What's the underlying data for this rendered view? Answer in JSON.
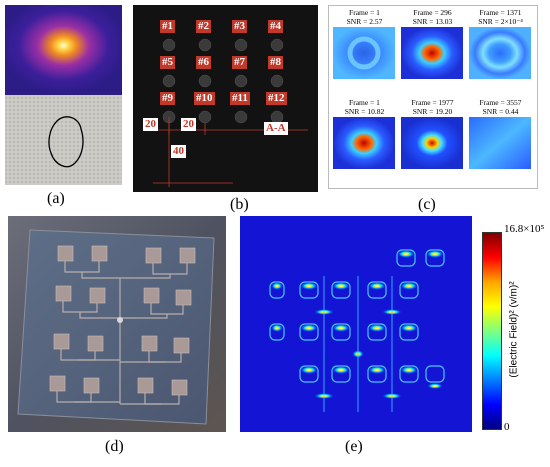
{
  "panels": {
    "a": {
      "caption": "(a)"
    },
    "b": {
      "caption": "(b)",
      "holes": [
        "#1",
        "#2",
        "#3",
        "#4",
        "#5",
        "#6",
        "#7",
        "#8",
        "#9",
        "#10",
        "#11",
        "#12"
      ],
      "dimensions": [
        "20",
        "20",
        "40"
      ],
      "section_label": "A-A"
    },
    "c": {
      "caption": "(c)",
      "frames": [
        {
          "frame": "Frame = 1",
          "snr": "SNR = 2.57"
        },
        {
          "frame": "Frame = 296",
          "snr": "SNR = 13.03"
        },
        {
          "frame": "Frame = 1371",
          "snr": "SNR = 2×10⁻⁴"
        },
        {
          "frame": "Frame = 1",
          "snr": "SNR = 10.82"
        },
        {
          "frame": "Frame = 1977",
          "snr": "SNR = 19.20"
        },
        {
          "frame": "Frame = 3557",
          "snr": "SNR = 0.44"
        }
      ]
    },
    "d": {
      "caption": "(d)"
    },
    "e": {
      "caption": "(e)",
      "colorbar_max": "16.8×10⁵",
      "colorbar_min": "0",
      "colorbar_label": "(Electric Field)² (v/m)²"
    }
  }
}
